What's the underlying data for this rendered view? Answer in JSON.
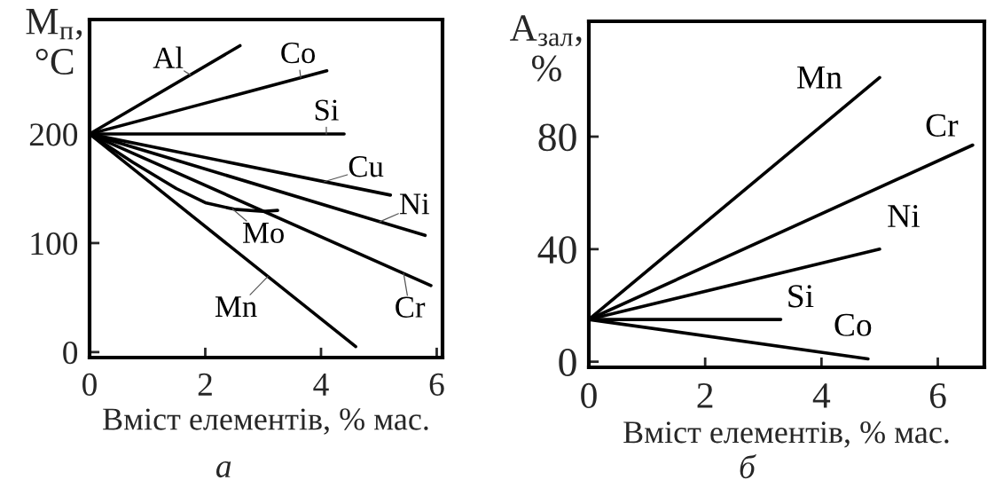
{
  "chart_data": [
    {
      "type": "line",
      "xlabel": "Вміст елементів, % мас.",
      "ylabel": "М$_{п}$,\n°C",
      "xlim": [
        0,
        6.1
      ],
      "ylim": [
        -5,
        305
      ],
      "xticks": [
        0,
        2,
        4,
        6
      ],
      "yticks": [
        0,
        100,
        200
      ],
      "annotations": [
        "а"
      ],
      "series": [
        {
          "name": "Al",
          "color": "#000000",
          "x": [
            0,
            2.6
          ],
          "values": [
            200,
            281
          ]
        },
        {
          "name": "Co",
          "color": "#000000",
          "x": [
            0,
            4.1
          ],
          "values": [
            200,
            258
          ]
        },
        {
          "name": "Si",
          "color": "#000000",
          "x": [
            0,
            4.4
          ],
          "values": [
            200,
            200
          ]
        },
        {
          "name": "Cu",
          "color": "#000000",
          "x": [
            0,
            5.2
          ],
          "values": [
            200,
            144
          ]
        },
        {
          "name": "Ni",
          "color": "#000000",
          "x": [
            0,
            5.8
          ],
          "values": [
            200,
            107
          ]
        },
        {
          "name": "Cr",
          "color": "#000000",
          "x": [
            0,
            5.9
          ],
          "values": [
            200,
            61
          ]
        },
        {
          "name": "Mo",
          "color": "#000000",
          "x": [
            0,
            0.75,
            1.5,
            2.0,
            2.5,
            3.0,
            3.25
          ],
          "values": [
            200,
            174,
            150,
            137,
            131,
            129,
            130
          ]
        },
        {
          "name": "Mn",
          "color": "#000000",
          "x": [
            0,
            4.6
          ],
          "values": [
            200,
            5
          ]
        }
      ]
    },
    {
      "type": "line",
      "xlabel": "Вміст елементів, % мас.",
      "ylabel": "А$_{зал}$,\n%",
      "xlim": [
        0,
        6.8
      ],
      "ylim": [
        -2,
        121
      ],
      "xticks": [
        0,
        2,
        4,
        6
      ],
      "yticks": [
        0,
        40,
        80
      ],
      "annotations": [
        "б"
      ],
      "series": [
        {
          "name": "Mn",
          "color": "#000000",
          "x": [
            0,
            5.0
          ],
          "values": [
            15,
            101
          ]
        },
        {
          "name": "Cr",
          "color": "#000000",
          "x": [
            0,
            6.6
          ],
          "values": [
            15,
            77
          ]
        },
        {
          "name": "Ni",
          "color": "#000000",
          "x": [
            0,
            5.0
          ],
          "values": [
            15,
            40
          ]
        },
        {
          "name": "Si",
          "color": "#000000",
          "x": [
            0,
            3.3
          ],
          "values": [
            15,
            15
          ]
        },
        {
          "name": "Co",
          "color": "#000000",
          "x": [
            0,
            4.8
          ],
          "values": [
            15,
            1
          ]
        }
      ]
    }
  ]
}
